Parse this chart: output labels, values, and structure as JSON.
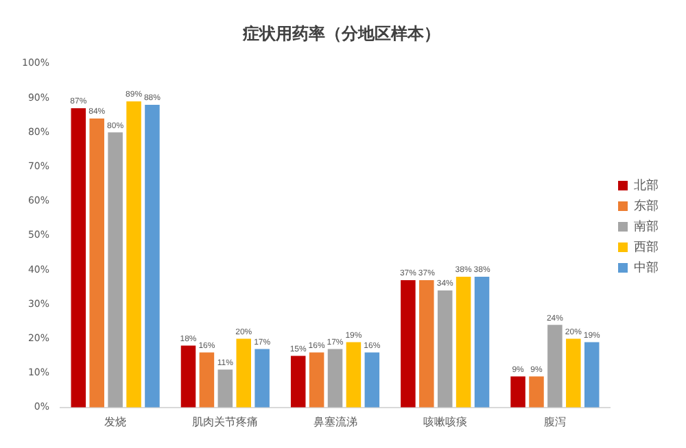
{
  "chart_data": {
    "type": "bar",
    "title": "症状用药率（分地区样本）",
    "categories": [
      "发烧",
      "肌肉关节疼痛",
      "鼻塞流涕",
      "咳嗽咳痰",
      "腹泻"
    ],
    "series": [
      {
        "name": "北部",
        "color": "#c00000",
        "values": [
          87,
          18,
          15,
          37,
          9
        ],
        "value_labels": [
          "87%",
          "18%",
          "15%",
          "37%",
          "9%"
        ]
      },
      {
        "name": "东部",
        "color": "#ed7d31",
        "values": [
          84,
          16,
          16,
          37,
          9
        ],
        "value_labels": [
          "84%",
          "16%",
          "16%",
          "37%",
          "9%"
        ]
      },
      {
        "name": "南部",
        "color": "#a5a5a5",
        "values": [
          80,
          11,
          17,
          34,
          24
        ],
        "value_labels": [
          "80%",
          "11%",
          "17%",
          "34%",
          "24%"
        ]
      },
      {
        "name": "西部",
        "color": "#ffc000",
        "values": [
          89,
          20,
          19,
          38,
          20
        ],
        "value_labels": [
          "89%",
          "20%",
          "19%",
          "38%",
          "20%"
        ]
      },
      {
        "name": "中部",
        "color": "#5b9bd5",
        "values": [
          88,
          17,
          16,
          38,
          19
        ],
        "value_labels": [
          "88%",
          "17%",
          "16%",
          "38%",
          "19%"
        ]
      }
    ],
    "ylim": [
      0,
      100
    ],
    "yticks": [
      {
        "value": 0,
        "label": "0%"
      },
      {
        "value": 10,
        "label": "10%"
      },
      {
        "value": 20,
        "label": "20%"
      },
      {
        "value": 30,
        "label": "30%"
      },
      {
        "value": 40,
        "label": "40%"
      },
      {
        "value": 50,
        "label": "50%"
      },
      {
        "value": 60,
        "label": "60%"
      },
      {
        "value": 70,
        "label": "70%"
      },
      {
        "value": 80,
        "label": "80%"
      },
      {
        "value": 90,
        "label": "90%"
      },
      {
        "value": 100,
        "label": "100%"
      }
    ],
    "grid": false,
    "legend": "right"
  }
}
